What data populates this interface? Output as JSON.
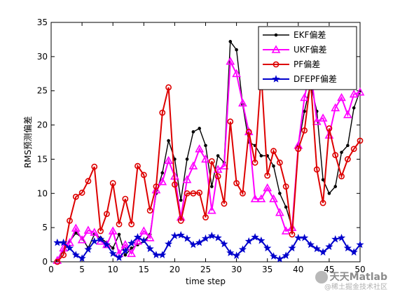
{
  "chart_data": {
    "type": "line",
    "xlabel": "time step",
    "ylabel": "RMS预测偏差",
    "xlim": [
      0,
      50
    ],
    "ylim": [
      0,
      35
    ],
    "xticks": [
      0,
      5,
      10,
      15,
      20,
      25,
      30,
      35,
      40,
      45,
      50
    ],
    "yticks": [
      0,
      5,
      10,
      15,
      20,
      25,
      30,
      35
    ],
    "grid": false,
    "legend_position": "top-right",
    "x": [
      1,
      2,
      3,
      4,
      5,
      6,
      7,
      8,
      9,
      10,
      11,
      12,
      13,
      14,
      15,
      16,
      17,
      18,
      19,
      20,
      21,
      22,
      23,
      24,
      25,
      26,
      27,
      28,
      29,
      30,
      31,
      32,
      33,
      34,
      35,
      36,
      37,
      38,
      39,
      40,
      41,
      42,
      43,
      44,
      45,
      46,
      47,
      48,
      49,
      50
    ],
    "series": [
      {
        "name": "EKF偏差",
        "color": "#000000",
        "marker": "dot",
        "values": [
          0.2,
          1.5,
          3.0,
          4.2,
          3.5,
          2.0,
          4.0,
          3.5,
          2.8,
          2.0,
          4.0,
          1.0,
          2.0,
          2.5,
          3.0,
          4.0,
          10.0,
          13.0,
          17.7,
          15.0,
          9.0,
          15.0,
          19.0,
          19.5,
          17.0,
          11.0,
          15.5,
          14.5,
          32.2,
          31.0,
          23.0,
          17.5,
          17.0,
          15.5,
          15.5,
          14.0,
          10.0,
          8.0,
          5.0,
          17.0,
          22.0,
          26.0,
          22.0,
          12.0,
          10.0,
          11.0,
          16.0,
          17.0,
          22.5,
          25.0
        ]
      },
      {
        "name": "UKF偏差",
        "color": "#ff00ff",
        "marker": "triangle",
        "values": [
          0.2,
          2.0,
          2.8,
          4.9,
          3.2,
          4.6,
          4.3,
          3.0,
          2.5,
          4.5,
          1.2,
          2.5,
          1.2,
          3.0,
          4.5,
          3.5,
          10.5,
          11.7,
          14.8,
          12.5,
          6.5,
          12.0,
          14.0,
          16.5,
          15.0,
          7.5,
          13.5,
          14.0,
          29.3,
          27.5,
          23.2,
          19.0,
          9.2,
          9.2,
          10.8,
          9.2,
          7.2,
          4.5,
          5.0,
          17.0,
          24.0,
          28.2,
          20.5,
          21.0,
          18.5,
          22.5,
          24.0,
          21.5,
          24.5,
          24.8
        ]
      },
      {
        "name": "PF偏差",
        "color": "#dd0000",
        "marker": "circle",
        "values": [
          0.0,
          1.0,
          6.0,
          9.5,
          10.1,
          11.8,
          13.9,
          4.5,
          7.0,
          11.5,
          5.5,
          9.2,
          5.5,
          14.0,
          12.7,
          7.5,
          11.0,
          21.8,
          25.5,
          11.3,
          6.0,
          10.0,
          10.0,
          10.1,
          6.5,
          14.7,
          12.5,
          8.5,
          20.5,
          11.5,
          10.0,
          19.0,
          14.5,
          27.5,
          12.6,
          16.2,
          14.5,
          11.0,
          4.0,
          16.5,
          19.2,
          26.5,
          13.5,
          8.6,
          19.5,
          15.6,
          12.5,
          15.0,
          16.5,
          17.7
        ]
      },
      {
        "name": "DFEPF偏差",
        "color": "#0000cc",
        "marker": "star",
        "values": [
          2.8,
          2.8,
          2.0,
          1.0,
          0.5,
          1.8,
          3.0,
          3.3,
          2.5,
          1.2,
          0.6,
          1.6,
          2.7,
          3.6,
          3.1,
          1.9,
          1.0,
          1.0,
          2.6,
          3.8,
          3.9,
          3.4,
          2.5,
          2.8,
          3.4,
          3.8,
          3.5,
          2.6,
          1.3,
          0.9,
          1.8,
          3.0,
          3.6,
          3.1,
          2.0,
          0.8,
          0.4,
          0.9,
          2.0,
          3.5,
          3.5,
          2.5,
          1.9,
          1.4,
          2.2,
          3.3,
          3.5,
          2.0,
          1.4,
          2.5
        ]
      }
    ]
  },
  "watermark": {
    "brand": "天天Matlab",
    "sub": "@稀土掘金技术社区"
  }
}
